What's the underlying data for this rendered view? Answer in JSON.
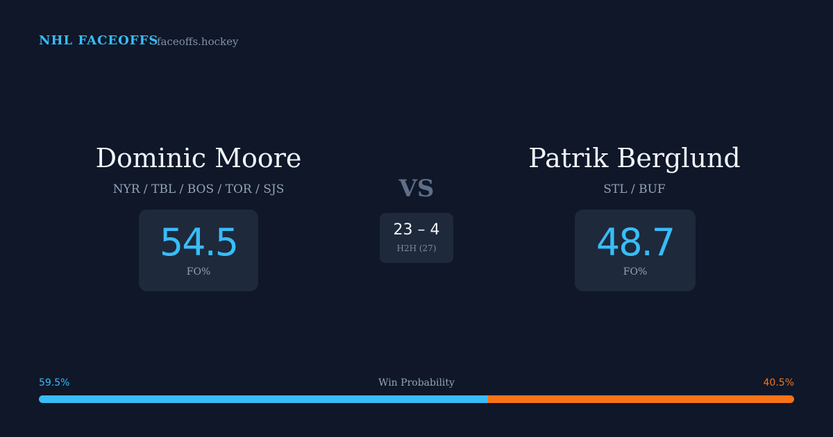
{
  "header": {
    "brand": "NHL FACEOFFS",
    "site": "faceoffs.hockey"
  },
  "players": [
    {
      "name": "Dominic Moore",
      "teams": "NYR / TBL / BOS / TOR / SJS",
      "stat": "54.5",
      "stat_label": "FO%"
    },
    {
      "name": "Patrik Berglund",
      "teams": "STL / BUF",
      "stat": "48.7",
      "stat_label": "FO%"
    }
  ],
  "versus": {
    "label": "VS",
    "score": "23 – 4",
    "score_label": "H2H (27)"
  },
  "win_probability": {
    "title": "Win Probability",
    "left": {
      "value": 59.5,
      "label": "59.5%",
      "color": "#38bdf8"
    },
    "right": {
      "value": 40.5,
      "label": "40.5%",
      "color": "#f97316"
    }
  }
}
